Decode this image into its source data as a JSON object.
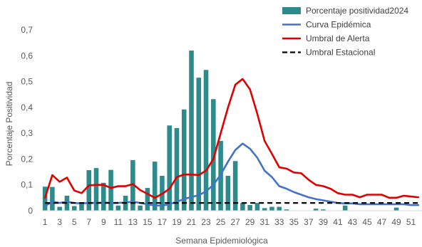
{
  "chart_data": {
    "type": "bar",
    "xlabel": "Semana Epidemiológica",
    "ylabel": "Porcentaje Positividad",
    "ylim": [
      0,
      0.7
    ],
    "y_ticks": [
      0,
      0.1,
      0.2,
      0.3,
      0.4,
      0.5,
      0.6,
      0.7
    ],
    "y_tick_labels": [
      "0",
      "0,1",
      "0,2",
      "0,3",
      "0,4",
      "0,5",
      "0,6",
      "0,7"
    ],
    "x": [
      1,
      2,
      3,
      4,
      5,
      6,
      7,
      8,
      9,
      10,
      11,
      12,
      13,
      14,
      15,
      16,
      17,
      18,
      19,
      20,
      21,
      22,
      23,
      24,
      25,
      26,
      27,
      28,
      29,
      30,
      31,
      32,
      33,
      34,
      35,
      36,
      37,
      38,
      39,
      40,
      41,
      42,
      43,
      44,
      45,
      46,
      47,
      48,
      49,
      50,
      51,
      52
    ],
    "x_tick_labels": [
      "1",
      "3",
      "5",
      "7",
      "9",
      "11",
      "13",
      "15",
      "17",
      "19",
      "21",
      "23",
      "25",
      "27",
      "29",
      "31",
      "33",
      "35",
      "37",
      "39",
      "41",
      "43",
      "45",
      "47",
      "49",
      "51"
    ],
    "legend_position": "top-right",
    "grid": false,
    "series": [
      {
        "name": "Porcentaje positividad2024",
        "kind": "bar",
        "color": "#2e8b8b",
        "values": [
          0.093,
          0.092,
          0.015,
          0.058,
          0.018,
          0.03,
          0.157,
          0.165,
          0.108,
          0.158,
          0.02,
          0.058,
          0.196,
          0.02,
          0.088,
          0.19,
          0.135,
          0.33,
          0.32,
          0.392,
          0.62,
          0.515,
          0.545,
          0.432,
          0.27,
          0.135,
          0.192,
          0.03,
          0.022,
          0.03,
          0.01,
          0.015,
          0.015,
          0.005,
          0.0,
          0.0,
          0.0,
          0.008,
          0.005,
          0.0,
          0.0,
          0.02,
          0.0,
          0.0,
          0.0,
          0.0,
          0.0,
          0.0,
          0.012,
          0.0,
          0.0,
          0.0
        ]
      },
      {
        "name": "Curva Epidémica",
        "kind": "line",
        "color": "#4472c4",
        "values": [
          0.018,
          0.035,
          0.03,
          0.035,
          0.03,
          0.028,
          0.03,
          0.03,
          0.032,
          0.03,
          0.03,
          0.032,
          0.035,
          0.03,
          0.025,
          0.02,
          0.02,
          0.025,
          0.035,
          0.045,
          0.053,
          0.06,
          0.075,
          0.1,
          0.14,
          0.19,
          0.235,
          0.26,
          0.24,
          0.205,
          0.155,
          0.13,
          0.095,
          0.085,
          0.072,
          0.062,
          0.052,
          0.045,
          0.04,
          0.035,
          0.03,
          0.028,
          0.028,
          0.025,
          0.025,
          0.025,
          0.025,
          0.025,
          0.025,
          0.025,
          0.022,
          0.022
        ]
      },
      {
        "name": "Umbral de Alerta",
        "kind": "line",
        "color": "#e00000",
        "values": [
          0.05,
          0.138,
          0.112,
          0.128,
          0.078,
          0.068,
          0.098,
          0.1,
          0.1,
          0.088,
          0.095,
          0.095,
          0.103,
          0.08,
          0.065,
          0.05,
          0.065,
          0.085,
          0.13,
          0.14,
          0.14,
          0.138,
          0.155,
          0.2,
          0.3,
          0.4,
          0.488,
          0.51,
          0.47,
          0.375,
          0.27,
          0.22,
          0.168,
          0.163,
          0.148,
          0.145,
          0.12,
          0.1,
          0.095,
          0.085,
          0.068,
          0.062,
          0.062,
          0.052,
          0.062,
          0.062,
          0.062,
          0.05,
          0.05,
          0.058,
          0.055,
          0.052
        ]
      },
      {
        "name": "Umbral Estacional",
        "kind": "dashed-line",
        "color": "#000000",
        "values": [
          0.03,
          0.03,
          0.03,
          0.03,
          0.03,
          0.03,
          0.03,
          0.03,
          0.03,
          0.03,
          0.03,
          0.03,
          0.03,
          0.03,
          0.03,
          0.03,
          0.03,
          0.03,
          0.03,
          0.03,
          0.03,
          0.03,
          0.03,
          0.03,
          0.03,
          0.03,
          0.03,
          0.03,
          0.03,
          0.03,
          0.03,
          0.03,
          0.03,
          0.03,
          0.03,
          0.03,
          0.03,
          0.03,
          0.03,
          0.03,
          0.03,
          0.03,
          0.03,
          0.03,
          0.03,
          0.03,
          0.03,
          0.03,
          0.03,
          0.03,
          0.03,
          0.03
        ]
      }
    ]
  }
}
